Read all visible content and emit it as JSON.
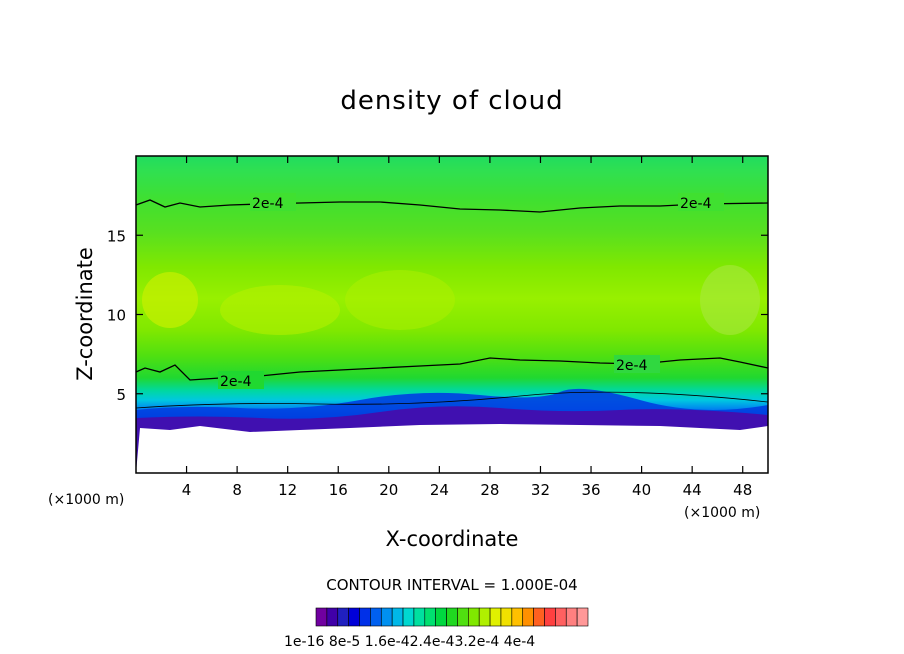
{
  "chart_data": {
    "type": "heatmap",
    "title": "density of cloud",
    "xlabel": "X-coordinate",
    "ylabel": "Z-coordinate",
    "x_unit": "(×1000 m)",
    "y_unit": "(×1000 m)",
    "xlim": [
      0,
      50
    ],
    "ylim": [
      0,
      20
    ],
    "x_ticks": [
      4,
      8,
      12,
      16,
      20,
      24,
      28,
      32,
      36,
      40,
      44,
      48
    ],
    "y_ticks": [
      5,
      10,
      15
    ],
    "contour_interval_text": "CONTOUR INTERVAL = 1.000E-04",
    "contour_labels": [
      "2e-4",
      "2e-4",
      "2e-4",
      "2e-4"
    ],
    "colorbar_labels_text": "1e-16 8e-5 1.6e-42.4e-43.2e-4 4e-4",
    "colorbar_colors": [
      "#7000a0",
      "#4000a8",
      "#2020c0",
      "#0000d8",
      "#0030e8",
      "#0060f0",
      "#0090f0",
      "#00b8e8",
      "#00d8d0",
      "#00e0a0",
      "#00e070",
      "#00d840",
      "#20d820",
      "#50e010",
      "#80e800",
      "#b0f000",
      "#e0f000",
      "#f0e000",
      "#ffc000",
      "#ff9000",
      "#ff6020",
      "#ff4040",
      "#ff6060",
      "#ff8080",
      "#ff9898"
    ],
    "field_description_values": {
      "cloud_base_z": 3.5,
      "cloud_top_z": 20,
      "max_density_z_range": [
        8,
        13
      ],
      "contour_2e4_lower_z_range": [
        5.5,
        7
      ],
      "contour_2e4_upper_z": 17
    }
  }
}
